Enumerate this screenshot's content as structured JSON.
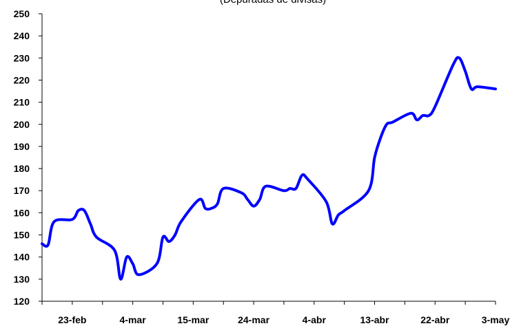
{
  "chart_data": {
    "type": "line",
    "title": "(Depuradas de divisas)",
    "xlabel": "",
    "ylabel": "",
    "ylim": [
      120,
      250
    ],
    "y_ticks": [
      120,
      130,
      140,
      150,
      160,
      170,
      180,
      190,
      200,
      210,
      220,
      230,
      240,
      250
    ],
    "x_tick_labels": [
      "23-feb",
      "4-mar",
      "15-mar",
      "24-mar",
      "4-abr",
      "13-abr",
      "22-abr",
      "3-may"
    ],
    "grid": false,
    "legend": "none",
    "line_color": "#0000ff",
    "series": [
      {
        "x": [
          "2004-02-18",
          "2004-02-19",
          "2004-02-20",
          "2004-02-23",
          "2004-02-24",
          "2004-02-25",
          "2004-02-26",
          "2004-02-27",
          "2004-03-01",
          "2004-03-02",
          "2004-03-03",
          "2004-03-04",
          "2004-03-05",
          "2004-03-08",
          "2004-03-09",
          "2004-03-10",
          "2004-03-11",
          "2004-03-12",
          "2004-03-15",
          "2004-03-16",
          "2004-03-17",
          "2004-03-18",
          "2004-03-19",
          "2004-03-22",
          "2004-03-23",
          "2004-03-24",
          "2004-03-25",
          "2004-03-26",
          "2004-03-29",
          "2004-03-30",
          "2004-03-31",
          "2004-04-01",
          "2004-04-02",
          "2004-04-05",
          "2004-04-06",
          "2004-04-07",
          "2004-04-08",
          "2004-04-12",
          "2004-04-13",
          "2004-04-14",
          "2004-04-15",
          "2004-04-16",
          "2004-04-19",
          "2004-04-20",
          "2004-04-21",
          "2004-04-22",
          "2004-04-23",
          "2004-04-26",
          "2004-04-27",
          "2004-04-28",
          "2004-04-29",
          "2004-04-30",
          "2004-05-03"
        ],
        "values": [
          146,
          145.5,
          156,
          157,
          161,
          161,
          155,
          149,
          143,
          130,
          140,
          137,
          132,
          137,
          149,
          147,
          150,
          156,
          166,
          162,
          162,
          164,
          171,
          169,
          166,
          163,
          166,
          172,
          170,
          171,
          171,
          177,
          175,
          165,
          155,
          159,
          161,
          170,
          185,
          194,
          200,
          201,
          205,
          202,
          204,
          204,
          208,
          227,
          230,
          224,
          216,
          217,
          216
        ]
      }
    ]
  }
}
